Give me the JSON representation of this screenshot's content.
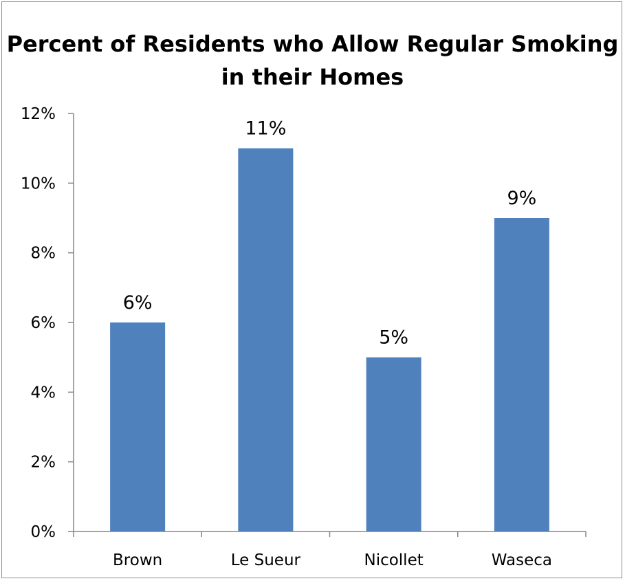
{
  "chart_data": {
    "type": "bar",
    "title": "Percent of Residents who Allow Regular Smoking in their Homes",
    "categories": [
      "Brown",
      "Le Sueur",
      "Nicollet",
      "Waseca"
    ],
    "values": [
      6,
      11,
      5,
      9
    ],
    "data_labels": [
      "6%",
      "11%",
      "5%",
      "9%"
    ],
    "y_ticks": [
      "0%",
      "2%",
      "4%",
      "6%",
      "8%",
      "10%",
      "12%"
    ],
    "ylim": [
      0,
      12
    ],
    "xlabel": "",
    "ylabel": "",
    "grid": false,
    "legend": "none",
    "bar_color": "#4f81bd"
  }
}
